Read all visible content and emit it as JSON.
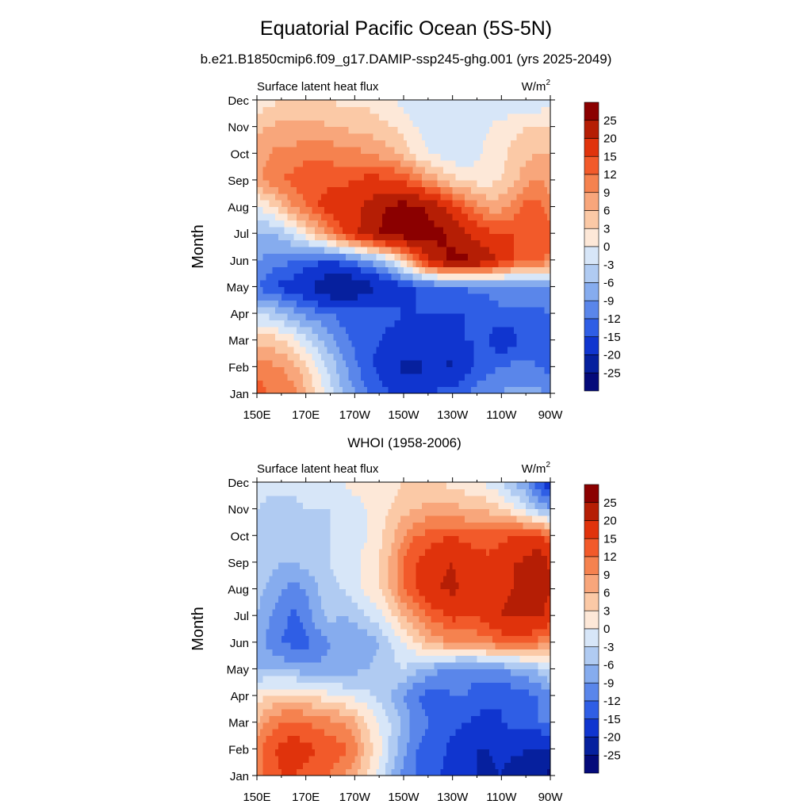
{
  "figure": {
    "title": "Equatorial Pacific Ocean (5S-5N)",
    "subtitle": "b.e21.B1850cmip6.f09_g17.DAMIP-ssp245-ghg.001 (yrs 2025-2049)"
  },
  "colorbar": {
    "levels": [
      "25",
      "20",
      "15",
      "12",
      "9",
      "6",
      "3",
      "0",
      "-3",
      "-6",
      "-9",
      "-12",
      "-15",
      "-20",
      "-25"
    ],
    "colors": [
      "#8b0000",
      "#b51e05",
      "#e0330c",
      "#f25a2a",
      "#f5824f",
      "#f8a67b",
      "#fbc9a6",
      "#fde8d8",
      "#d7e6f8",
      "#b0cbf2",
      "#86acee",
      "#5a86ea",
      "#2f5ee5",
      "#1035cf",
      "#06209e",
      "#040a7a"
    ]
  },
  "chart_data": [
    {
      "type": "heatmap",
      "panel_title": "",
      "left_label": "Surface latent heat flux",
      "units_label": "W/m",
      "units_sup": "2",
      "ylabel": "Month",
      "xticks": [
        "150E",
        "170E",
        "170W",
        "150W",
        "130W",
        "110W",
        "90W"
      ],
      "yticks": [
        "Jan",
        "Feb",
        "Mar",
        "Apr",
        "May",
        "Jun",
        "Jul",
        "Aug",
        "Sep",
        "Oct",
        "Nov",
        "Dec"
      ],
      "xlim_lon_east": [
        150,
        270
      ],
      "xlabels_lon_east": [
        150,
        170,
        190,
        210,
        230,
        250,
        270
      ],
      "yrange_month_index": [
        0,
        11
      ],
      "values": [
        [
          14,
          12,
          11,
          10,
          6,
          2,
          -2,
          -6,
          -9,
          -12,
          -14,
          -15,
          -17,
          -17,
          -16,
          -14,
          -13,
          -12,
          -11,
          -10,
          -9,
          -8,
          -8,
          -8,
          -10
        ],
        [
          11,
          10,
          9,
          7,
          4,
          0,
          -4,
          -8,
          -11,
          -14,
          -16,
          -18,
          -21,
          -21,
          -20,
          -20,
          -21,
          -17,
          -14,
          -13,
          -12,
          -11,
          -11,
          -12,
          -13
        ],
        [
          5,
          5,
          3,
          1,
          -2,
          -5,
          -8,
          -11,
          -13,
          -14,
          -15,
          -16,
          -17,
          -17,
          -17,
          -16,
          -16,
          -15,
          -15,
          -15,
          -18,
          -16,
          -14,
          -13,
          -12
        ],
        [
          -4,
          -4,
          -6,
          -8,
          -10,
          -11,
          -12,
          -13,
          -13,
          -14,
          -14,
          -14,
          -15,
          -15,
          -15,
          -15,
          -15,
          -15,
          -14,
          -14,
          -13,
          -13,
          -13,
          -13,
          -12
        ],
        [
          -12,
          -14,
          -16,
          -17,
          -19,
          -22,
          -25,
          -26,
          -25,
          -22,
          -20,
          -18,
          -16,
          -15,
          -14,
          -13,
          -12,
          -12,
          -11,
          -11,
          -10,
          -10,
          -10,
          -9,
          -9
        ],
        [
          -9,
          -10,
          -11,
          -12,
          -13,
          -14,
          -15,
          -13,
          -11,
          -9,
          -6,
          -2,
          4,
          12,
          19,
          24,
          26,
          26,
          25,
          23,
          17,
          15,
          13,
          12,
          11
        ],
        [
          -6,
          -6,
          -5,
          -2,
          2,
          6,
          10,
          15,
          19,
          22,
          25,
          27,
          28,
          28,
          27,
          26,
          24,
          21,
          18,
          16,
          15,
          15,
          15,
          15,
          14
        ],
        [
          -1,
          2,
          5,
          9,
          12,
          15,
          17,
          18,
          19,
          21,
          24,
          26,
          27,
          26,
          24,
          21,
          17,
          13,
          10,
          8,
          8,
          10,
          14,
          13,
          10
        ],
        [
          8,
          10,
          12,
          13,
          14,
          14,
          14,
          14,
          15,
          16,
          16,
          16,
          14,
          12,
          9,
          6,
          4,
          3,
          2,
          2,
          3,
          5,
          8,
          9,
          8
        ],
        [
          8,
          9,
          10,
          10,
          11,
          11,
          11,
          10,
          10,
          9,
          8,
          7,
          5,
          2,
          0,
          -1,
          -2,
          -3,
          -1,
          1,
          2,
          4,
          5,
          6,
          6
        ],
        [
          5,
          6,
          7,
          7,
          7,
          7,
          6,
          6,
          5,
          5,
          4,
          3,
          2,
          0,
          -1,
          -2,
          -2,
          -2,
          -1,
          0,
          1,
          2,
          3,
          3,
          3
        ],
        [
          1,
          2,
          3,
          3,
          3,
          3,
          3,
          2,
          2,
          2,
          1,
          0,
          -1,
          -2,
          -2,
          -2,
          -2,
          -2,
          -2,
          -2,
          -2,
          -3,
          -3,
          -2,
          -1
        ]
      ]
    },
    {
      "type": "heatmap",
      "panel_title": "WHOI (1958-2006)",
      "left_label": "Surface latent heat flux",
      "units_label": "W/m",
      "units_sup": "2",
      "ylabel": "Month",
      "xticks": [
        "150E",
        "170E",
        "170W",
        "150W",
        "130W",
        "110W",
        "90W"
      ],
      "yticks": [
        "Jan",
        "Feb",
        "Mar",
        "Apr",
        "May",
        "Jun",
        "Jul",
        "Aug",
        "Sep",
        "Oct",
        "Nov",
        "Dec"
      ],
      "xlim_lon_east": [
        150,
        270
      ],
      "xlabels_lon_east": [
        150,
        170,
        190,
        210,
        230,
        250,
        270
      ],
      "yrange_month_index": [
        0,
        11
      ],
      "values": [
        [
          11,
          13,
          15,
          15,
          14,
          13,
          12,
          9,
          7,
          3,
          -1,
          -6,
          -10,
          -12,
          -13,
          -15,
          -17,
          -18,
          -20,
          -21,
          -20,
          -22,
          -22,
          -24,
          -26
        ],
        [
          10,
          14,
          16,
          17,
          16,
          15,
          14,
          13,
          10,
          5,
          1,
          -4,
          -8,
          -12,
          -13,
          -14,
          -16,
          -17,
          -20,
          -20,
          -19,
          -19,
          -20,
          -21,
          -20
        ],
        [
          6,
          10,
          12,
          13,
          12,
          11,
          10,
          9,
          7,
          3,
          0,
          -3,
          -7,
          -10,
          -12,
          -13,
          -14,
          -15,
          -16,
          -16,
          -15,
          -14,
          -13,
          -12,
          -11
        ],
        [
          1,
          3,
          4,
          4,
          3,
          2,
          1,
          0,
          -1,
          -2,
          -4,
          -6,
          -9,
          -12,
          -13,
          -13,
          -12,
          -12,
          -13,
          -14,
          -15,
          -14,
          -13,
          -12,
          -10
        ],
        [
          -6,
          -6,
          -7,
          -7,
          -8,
          -8,
          -8,
          -8,
          -7,
          -6,
          -5,
          -4,
          -3,
          -5,
          -7,
          -9,
          -10,
          -11,
          -11,
          -10,
          -9,
          -8,
          -7,
          -5,
          -3
        ],
        [
          -6,
          -10,
          -12,
          -13,
          -13,
          -11,
          -9,
          -9,
          -9,
          -8,
          -6,
          -3,
          0,
          3,
          6,
          8,
          9,
          9,
          10,
          11,
          12,
          13,
          12,
          11,
          9
        ],
        [
          -6,
          -9,
          -11,
          -13,
          -11,
          -7,
          -5,
          -6,
          -5,
          -3,
          -1,
          2,
          6,
          9,
          12,
          14,
          16,
          15,
          15,
          17,
          20,
          21,
          21,
          21,
          18
        ],
        [
          -5,
          -7,
          -9,
          -10,
          -9,
          -6,
          -4,
          -3,
          -1,
          1,
          3,
          7,
          12,
          15,
          18,
          20,
          21,
          19,
          18,
          18,
          19,
          20,
          21,
          22,
          20
        ],
        [
          -3,
          -5,
          -6,
          -6,
          -5,
          -4,
          -3,
          -2,
          -1,
          1,
          3,
          7,
          12,
          15,
          17,
          19,
          20,
          18,
          17,
          16,
          18,
          20,
          21,
          26,
          19
        ],
        [
          -4,
          -6,
          -6,
          -6,
          -5,
          -4,
          -3,
          -2,
          -1,
          0,
          2,
          5,
          9,
          12,
          13,
          14,
          15,
          14,
          13,
          13,
          14,
          15,
          15,
          15,
          13
        ],
        [
          -3,
          -4,
          -4,
          -4,
          -3,
          -3,
          -3,
          -2,
          -1,
          0,
          2,
          3,
          5,
          6,
          7,
          7,
          7,
          6,
          6,
          5,
          3,
          1,
          -2,
          -6,
          -9
        ],
        [
          -1,
          -2,
          -2,
          -2,
          -1,
          0,
          0,
          0,
          1,
          1,
          2,
          2,
          3,
          3,
          3,
          3,
          2,
          1,
          0,
          -1,
          -3,
          -6,
          -9,
          -14,
          -18
        ]
      ]
    }
  ]
}
